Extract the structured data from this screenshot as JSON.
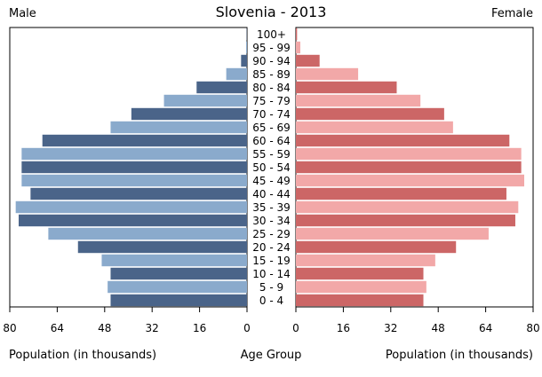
{
  "chart_data": {
    "type": "bar",
    "title": "Slovenia - 2013",
    "left_header": "Male",
    "right_header": "Female",
    "xlabel_left": "Population (in thousands)",
    "xlabel_center": "Age Group",
    "xlabel_right": "Population (in thousands)",
    "xlim": [
      0,
      80
    ],
    "ticks": [
      0,
      16,
      32,
      48,
      64,
      80
    ],
    "categories": [
      "0 - 4",
      "5 - 9",
      "10 - 14",
      "15 - 19",
      "20 - 24",
      "25 - 29",
      "30 - 34",
      "35 - 39",
      "40 - 44",
      "45 - 49",
      "50 - 54",
      "55 - 59",
      "60 - 64",
      "65 - 69",
      "70 - 74",
      "75 - 79",
      "80 - 84",
      "85 - 89",
      "90 - 94",
      "95 - 99",
      "100+"
    ],
    "series": [
      {
        "name": "Male",
        "values": [
          46,
          47,
          46,
          49,
          57,
          67,
          77,
          78,
          73,
          76,
          76,
          76,
          69,
          46,
          39,
          28,
          17,
          7,
          2,
          0.3,
          0.1
        ]
      },
      {
        "name": "Female",
        "values": [
          43,
          44,
          43,
          47,
          54,
          65,
          74,
          75,
          71,
          77,
          76,
          76,
          72,
          53,
          50,
          42,
          34,
          21,
          8,
          1.5,
          0.4
        ]
      }
    ],
    "colors": {
      "male_dark": "#4a6489",
      "male_light": "#8aaacc",
      "female_dark": "#cc6666",
      "female_light": "#f2a8a8"
    }
  }
}
